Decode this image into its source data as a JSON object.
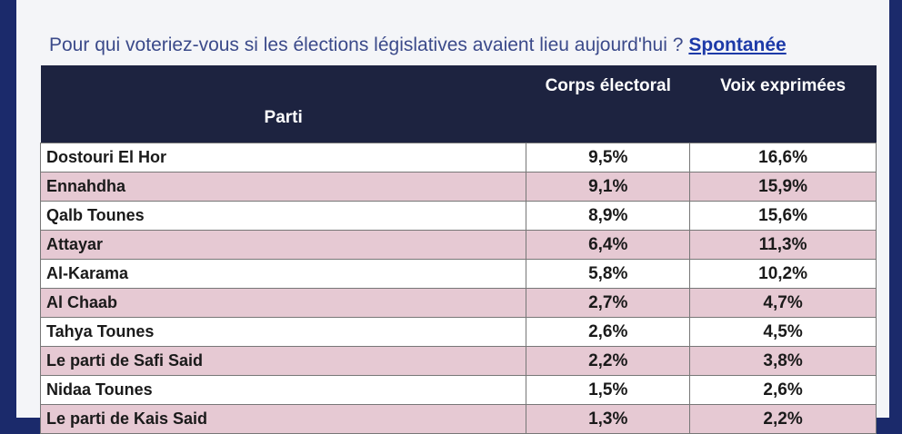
{
  "header": {
    "question": "Pour qui voteriez-vous si les élections législatives avaient lieu aujourd'hui ?",
    "tag": "Spontanée"
  },
  "table": {
    "columns": [
      "Parti",
      "Corps électoral",
      "Voix exprimées"
    ],
    "rows": [
      [
        "Dostouri El Hor",
        "9,5%",
        "16,6%"
      ],
      [
        "Ennahdha",
        "9,1%",
        "15,9%"
      ],
      [
        "Qalb Tounes",
        "8,9%",
        "15,6%"
      ],
      [
        "Attayar",
        "6,4%",
        "11,3%"
      ],
      [
        "Al-Karama",
        "5,8%",
        "10,2%"
      ],
      [
        "Al Chaab",
        "2,7%",
        "4,7%"
      ],
      [
        "Tahya Tounes",
        "2,6%",
        "4,5%"
      ],
      [
        "Le parti de Safi Said",
        "2,2%",
        "3,8%"
      ],
      [
        "Nidaa Tounes",
        "1,5%",
        "2,6%"
      ],
      [
        "Le parti de Kais Said",
        "1,3%",
        "2,2%"
      ]
    ]
  }
}
